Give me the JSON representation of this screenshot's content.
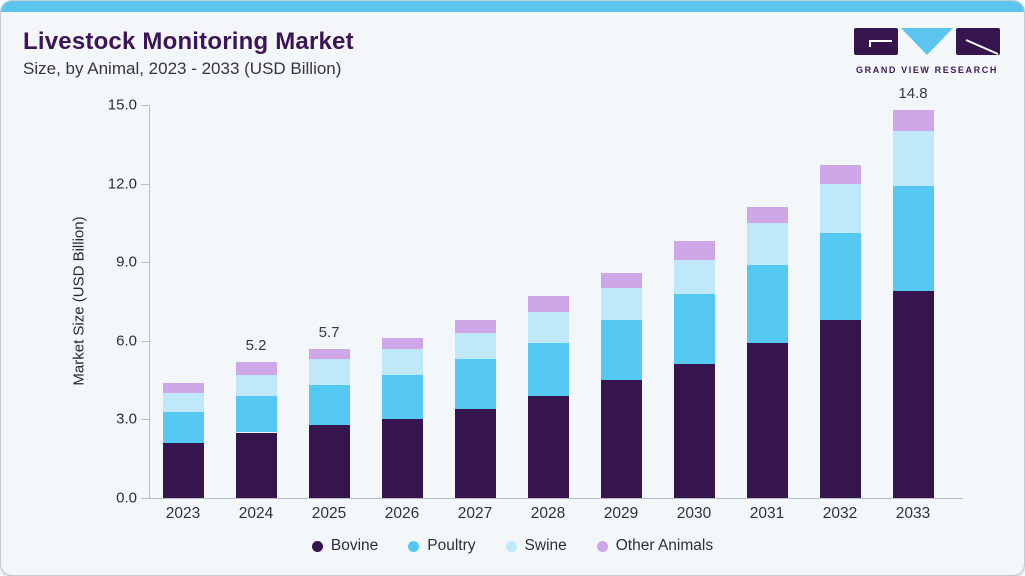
{
  "page": {
    "title": "Livestock Monitoring Market",
    "subtitle": "Size, by Animal, 2023 - 2033 (USD Billion)",
    "brand": {
      "name": "GRAND VIEW RESEARCH"
    }
  },
  "colors": {
    "accent_strip": "#5bc5f0",
    "title_purple": "#3d1457",
    "card_bg": "#f3f7fa",
    "axis_gray": "#b9bfc7",
    "bovine": "#36154e",
    "poultry": "#55c8f2",
    "swine": "#bfe8fa",
    "other_animals": "#cda7e8"
  },
  "chart_data": {
    "type": "bar",
    "stacked": true,
    "title": "Livestock Monitoring Market",
    "subtitle": "Size, by Animal, 2023 - 2033 (USD Billion)",
    "categories": [
      "2023",
      "2024",
      "2025",
      "2026",
      "2027",
      "2028",
      "2029",
      "2030",
      "2031",
      "2032",
      "2033"
    ],
    "series": [
      {
        "name": "Bovine",
        "color": "#36154e",
        "values": [
          2.1,
          2.5,
          2.8,
          3.0,
          3.4,
          3.9,
          4.5,
          5.1,
          5.9,
          6.8,
          7.9
        ]
      },
      {
        "name": "Poultry",
        "color": "#55c8f2",
        "values": [
          1.2,
          1.4,
          1.5,
          1.7,
          1.9,
          2.0,
          2.3,
          2.7,
          3.0,
          3.3,
          4.0
        ]
      },
      {
        "name": "Swine",
        "color": "#bfe8fa",
        "values": [
          0.7,
          0.8,
          1.0,
          1.0,
          1.0,
          1.2,
          1.2,
          1.3,
          1.6,
          1.9,
          2.1
        ]
      },
      {
        "name": "Other Animals",
        "color": "#cda7e8",
        "values": [
          0.4,
          0.5,
          0.4,
          0.4,
          0.5,
          0.6,
          0.6,
          0.7,
          0.6,
          0.7,
          0.8
        ]
      }
    ],
    "totals": [
      4.4,
      5.2,
      5.7,
      6.1,
      6.8,
      7.7,
      8.6,
      9.8,
      11.1,
      12.7,
      14.8
    ],
    "total_labels": [
      "",
      "5.2",
      "5.7",
      "",
      "",
      "",
      "",
      "",
      "",
      "",
      "14.8"
    ],
    "ylabel": "Market Size (USD Billion)",
    "yticks": [
      "0.0",
      "3.0",
      "6.0",
      "9.0",
      "12.0",
      "15.0"
    ],
    "ytick_values": [
      0,
      3,
      6,
      9,
      12,
      15
    ],
    "ylim": [
      0,
      15
    ],
    "grid": false,
    "legend_position": "bottom"
  }
}
